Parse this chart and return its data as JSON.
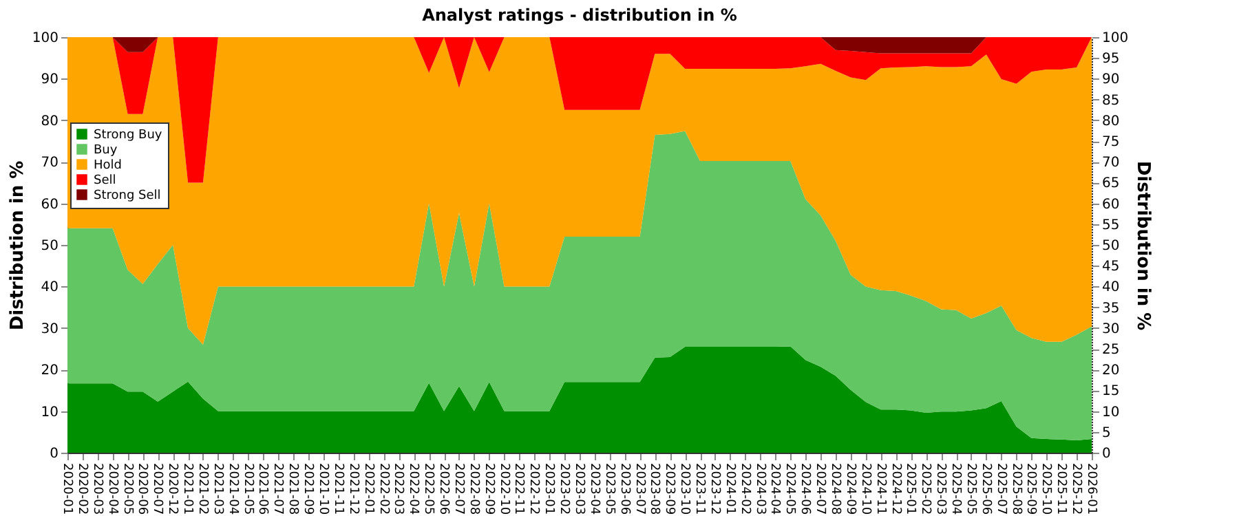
{
  "chart_data": {
    "type": "area",
    "stacked": true,
    "title": "Analyst ratings - distribution in %",
    "ylabel": "Distribution in %",
    "y2label": "Distribution in %",
    "categories": [
      "2020-01",
      "2020-02",
      "2020-03",
      "2020-04",
      "2020-05",
      "2020-06",
      "2020-07",
      "2020-12",
      "2021-01",
      "2021-02",
      "2021-03",
      "2021-04",
      "2021-05",
      "2021-06",
      "2021-07",
      "2021-08",
      "2021-09",
      "2021-10",
      "2021-11",
      "2021-12",
      "2022-01",
      "2022-02",
      "2022-03",
      "2022-04",
      "2022-05",
      "2022-06",
      "2022-07",
      "2022-08",
      "2022-09",
      "2022-10",
      "2022-11",
      "2022-12",
      "2023-01",
      "2023-02",
      "2023-03",
      "2023-04",
      "2023-05",
      "2023-06",
      "2023-07",
      "2023-08",
      "2023-09",
      "2023-10",
      "2023-11",
      "2023-12",
      "2024-01",
      "2024-02",
      "2024-03",
      "2024-04",
      "2024-05",
      "2024-06",
      "2024-07",
      "2024-08",
      "2024-09",
      "2024-10",
      "2024-11",
      "2024-12",
      "2025-01",
      "2025-02",
      "2025-03",
      "2025-04",
      "2025-05",
      "2025-06",
      "2025-07",
      "2025-08",
      "2025-09",
      "2025-10",
      "2025-11",
      "2025-12",
      "2026-01"
    ],
    "series": [
      {
        "name": "Strong Buy",
        "color": "#008f00",
        "values": [
          16.7,
          16.7,
          16.7,
          16.7,
          14.7,
          14.7,
          12.3,
          14.7,
          17.1,
          13,
          10,
          10,
          10,
          10,
          10,
          10,
          10,
          10,
          10,
          10,
          10,
          10,
          10,
          10,
          16.8,
          10,
          16,
          10,
          17,
          10,
          10,
          10,
          10,
          17,
          17,
          17,
          17,
          17,
          17,
          22.9,
          23,
          25.5,
          25.5,
          25.5,
          25.5,
          25.5,
          25.5,
          25.5,
          25.6,
          22.3,
          20.7,
          18.5,
          15.1,
          12.2,
          10.4,
          10.4,
          10.2,
          9.6,
          9.9,
          9.9,
          10.2,
          10.7,
          12.4,
          6.3,
          3.5,
          3.3,
          3.2,
          3,
          3.3
        ]
      },
      {
        "name": "Buy",
        "color": "#62c762",
        "values": [
          37.3,
          37.3,
          37.3,
          37.3,
          29.3,
          25.9,
          33.1,
          35.3,
          12.9,
          13,
          30,
          30,
          30,
          30,
          30,
          30,
          30,
          30,
          30,
          30,
          30,
          30,
          30,
          30,
          43.2,
          30,
          41.7,
          30,
          43,
          30,
          30,
          30,
          30,
          35,
          35,
          35,
          35,
          35,
          35,
          53.6,
          53.7,
          51.9,
          44.7,
          44.7,
          44.7,
          44.7,
          44.7,
          44.7,
          44.6,
          38.7,
          36.4,
          32.5,
          27.7,
          27.8,
          28.7,
          28.5,
          27.6,
          26.9,
          24.6,
          24.4,
          22.1,
          22.9,
          23,
          23.2,
          24.1,
          23.4,
          23.5,
          25.4,
          27.1
        ]
      },
      {
        "name": "Hold",
        "color": "#ffa500",
        "values": [
          46,
          46,
          46,
          46,
          37.5,
          40.9,
          54.6,
          50,
          35,
          39,
          60,
          60,
          60,
          60,
          60,
          60,
          60,
          60,
          60,
          60,
          60,
          60,
          60,
          60,
          31.4,
          60,
          30,
          60,
          31.6,
          60,
          60,
          60,
          60,
          30.5,
          30.5,
          30.5,
          30.5,
          30.5,
          30.5,
          19.5,
          19.3,
          15,
          22.2,
          22.2,
          22.2,
          22.2,
          22.2,
          22.2,
          22.3,
          32,
          36.5,
          40.9,
          47.5,
          49.7,
          53.4,
          53.8,
          55,
          56.5,
          58.3,
          58.5,
          60.7,
          62.2,
          54.5,
          59.3,
          64.1,
          65.5,
          65.5,
          64.3,
          69.6
        ]
      },
      {
        "name": "Sell",
        "color": "#ff0000",
        "values": [
          0,
          0,
          0,
          0,
          14.9,
          14.9,
          0,
          0,
          35,
          35,
          0,
          0,
          0,
          0,
          0,
          0,
          0,
          0,
          0,
          0,
          0,
          0,
          0,
          0,
          8.6,
          0,
          12.3,
          0,
          8.4,
          0,
          0,
          0,
          0,
          17.5,
          17.5,
          17.5,
          17.5,
          17.5,
          17.5,
          4,
          4,
          7.6,
          7.6,
          7.6,
          7.6,
          7.6,
          7.6,
          7.6,
          7.5,
          7,
          6.4,
          5,
          6.4,
          6.7,
          3.6,
          3.4,
          3.3,
          3.1,
          3.3,
          3.3,
          3.1,
          4.2,
          10.1,
          11.2,
          8.3,
          7.8,
          7.8,
          7.3,
          0
        ]
      },
      {
        "name": "Strong Sell",
        "color": "#800000",
        "values": [
          0,
          0,
          0,
          0,
          3.6,
          3.6,
          0,
          0,
          0,
          0,
          0,
          0,
          0,
          0,
          0,
          0,
          0,
          0,
          0,
          0,
          0,
          0,
          0,
          0,
          0,
          0,
          0,
          0,
          0,
          0,
          0,
          0,
          0,
          0,
          0,
          0,
          0,
          0,
          0,
          0,
          0,
          0,
          0,
          0,
          0,
          0,
          0,
          0,
          0,
          0,
          0,
          3.1,
          3.3,
          3.6,
          3.9,
          3.9,
          3.9,
          3.9,
          3.9,
          3.9,
          3.9,
          0,
          0,
          0,
          0,
          0,
          0,
          0,
          0
        ]
      }
    ],
    "ylim": [
      0,
      100
    ],
    "yticks": [
      0,
      10,
      20,
      30,
      40,
      50,
      60,
      70,
      80,
      90,
      100
    ],
    "y2lim": [
      0,
      100
    ],
    "y2ticks": [
      0,
      5,
      10,
      15,
      20,
      25,
      30,
      35,
      40,
      45,
      50,
      55,
      60,
      65,
      70,
      75,
      80,
      85,
      90,
      95,
      100
    ],
    "grid": "y",
    "legend": "top left"
  }
}
